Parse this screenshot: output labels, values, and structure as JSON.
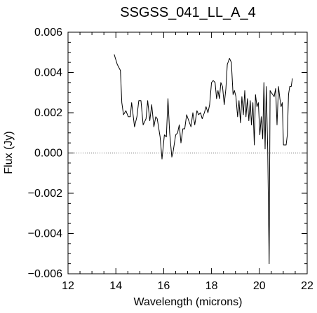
{
  "chart_data": {
    "type": "line",
    "title": "SSGSS_041_LL_A_4",
    "xlabel": "Wavelength (microns)",
    "ylabel": "Flux (Jy)",
    "xlim": [
      12,
      22
    ],
    "ylim": [
      -0.006,
      0.006
    ],
    "xticks": [
      12,
      14,
      16,
      18,
      20,
      22
    ],
    "xtick_labels": [
      "12",
      "14",
      "16",
      "18",
      "20",
      "22"
    ],
    "yticks": [
      -0.006,
      -0.004,
      -0.002,
      0.0,
      0.002,
      0.004,
      0.006
    ],
    "ytick_labels": [
      "−0.006",
      "−0.004",
      "−0.002",
      "0.000",
      "0.002",
      "0.004",
      "0.006"
    ],
    "reference_line": {
      "y": 0.0,
      "style": "dotted"
    },
    "grid": false,
    "legend": "none",
    "line_color": "#000000",
    "series": [
      {
        "x": [
          13.93,
          14.06,
          14.19,
          14.25,
          14.32,
          14.42,
          14.52,
          14.6,
          14.66,
          14.78,
          14.88,
          14.96,
          15.05,
          15.14,
          15.26,
          15.33,
          15.42,
          15.5,
          15.59,
          15.67,
          15.73,
          15.85,
          15.93,
          16.03,
          16.11,
          16.18,
          16.25,
          16.34,
          16.4,
          16.5,
          16.58,
          16.65,
          16.72,
          16.8,
          16.88,
          16.96,
          17.05,
          17.14,
          17.22,
          17.3,
          17.39,
          17.46,
          17.54,
          17.61,
          17.7,
          17.77,
          17.85,
          17.92,
          18.0,
          18.07,
          18.15,
          18.21,
          18.27,
          18.33,
          18.39,
          18.46,
          18.53,
          18.6,
          18.66,
          18.75,
          18.83,
          18.9,
          18.96,
          19.02,
          19.09,
          19.15,
          19.21,
          19.27,
          19.33,
          19.39,
          19.44,
          19.5,
          19.56,
          19.62,
          19.67,
          19.73,
          19.79,
          19.84,
          19.9,
          19.96,
          20.02,
          20.08,
          20.14,
          20.19,
          20.24,
          20.29,
          20.35,
          20.41,
          20.45,
          20.5,
          20.56,
          20.62,
          20.68,
          20.74,
          20.8,
          20.86,
          20.91,
          20.96,
          21.01,
          21.06,
          21.12,
          21.17,
          21.22,
          21.27,
          21.33,
          21.38
        ],
        "y": [
          0.0049,
          0.0044,
          0.0041,
          0.0025,
          0.0019,
          0.0021,
          0.0018,
          0.0018,
          0.0025,
          0.0013,
          0.0018,
          0.0026,
          0.0026,
          0.0014,
          0.0017,
          0.0026,
          0.0016,
          0.0024,
          0.0013,
          0.0018,
          0.0017,
          0.0008,
          -0.0003,
          0.0009,
          0.0008,
          0.0027,
          0.001,
          -0.0002,
          0.0001,
          0.0009,
          0.001,
          0.0014,
          0.0005,
          0.0012,
          0.0012,
          0.0019,
          0.0016,
          0.0013,
          0.002,
          0.0014,
          0.0021,
          0.0019,
          0.002,
          0.0017,
          0.002,
          0.0023,
          0.002,
          0.0024,
          0.0035,
          0.0036,
          0.0035,
          0.0027,
          0.0031,
          0.0027,
          0.0035,
          0.0033,
          0.0024,
          0.0032,
          0.0044,
          0.0047,
          0.0045,
          0.0029,
          0.0031,
          0.0028,
          0.0018,
          0.0026,
          0.0015,
          0.0028,
          0.0019,
          0.0031,
          0.0018,
          0.0027,
          0.0016,
          0.0026,
          0.0014,
          0.0025,
          0.0004,
          0.0029,
          0.0023,
          0.0025,
          0.0009,
          0.0018,
          0.0007,
          0.0035,
          0.0002,
          0.0033,
          0.0002,
          -0.0055,
          0.0031,
          0.003,
          0.0029,
          0.0028,
          0.0032,
          0.0014,
          0.0033,
          0.0027,
          0.0023,
          0.0025,
          0.0004,
          0.0004,
          0.0004,
          0.0009,
          0.0029,
          0.0033,
          0.0033,
          0.0037
        ]
      }
    ]
  }
}
